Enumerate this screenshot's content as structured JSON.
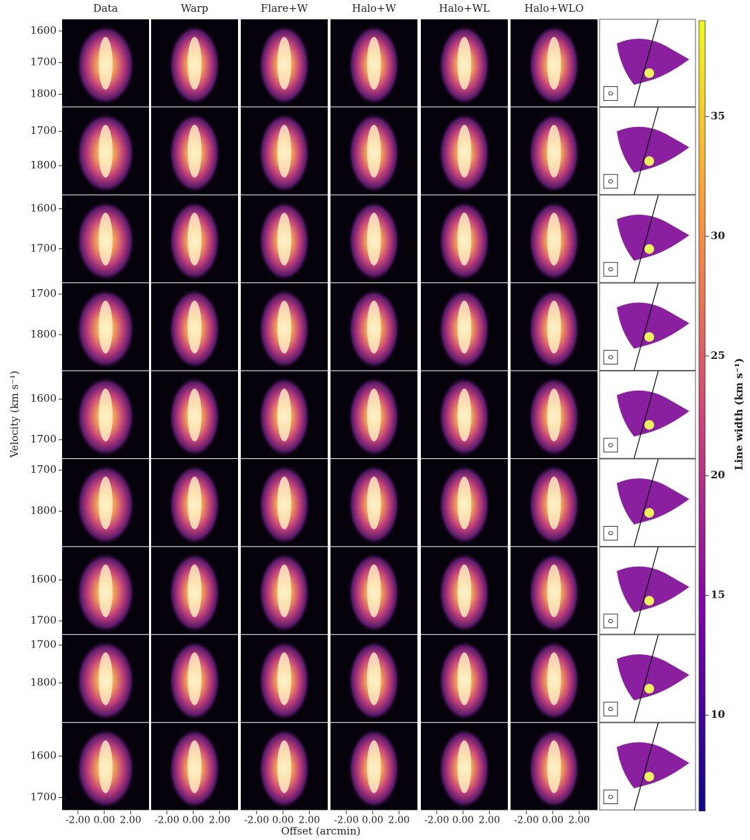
{
  "column_titles": [
    "Data",
    "Warp",
    "Flare+W",
    "Halo+W",
    "Halo+WL",
    "Halo+WLO"
  ],
  "ylabel": "Velocity (km s⁻¹)",
  "xlabel": "Offset (arcmin)",
  "xlim": [
    -3.2,
    3.4
  ],
  "xticks": [
    {
      "value": -2,
      "label": "-2.00"
    },
    {
      "value": 0,
      "label": "0.00"
    },
    {
      "value": 2,
      "label": "2.00"
    }
  ],
  "rows": [
    {
      "ylim": [
        1563,
        1839
      ],
      "yticks": [
        1600,
        1700,
        1800
      ]
    },
    {
      "ylim": [
        1630,
        1884
      ],
      "yticks": [
        1700,
        1800
      ]
    },
    {
      "ylim": [
        1566,
        1784
      ],
      "yticks": [
        1600,
        1700
      ]
    },
    {
      "ylim": [
        1673,
        1888
      ],
      "yticks": [
        1700,
        1800
      ]
    },
    {
      "ylim": [
        1531,
        1746
      ],
      "yticks": [
        1600,
        1700
      ]
    },
    {
      "ylim": [
        1673,
        1885
      ],
      "yticks": [
        1700,
        1800
      ]
    },
    {
      "ylim": [
        1520,
        1732
      ],
      "yticks": [
        1600,
        1700
      ]
    },
    {
      "ylim": [
        1673,
        1904
      ],
      "yticks": [
        1700,
        1800
      ]
    },
    {
      "ylim": [
        1520,
        1730
      ],
      "yticks": [
        1600,
        1700
      ]
    }
  ],
  "colorbar": {
    "label": "Line width (km s⁻¹)",
    "lim": [
      6,
      39
    ],
    "ticks": [
      10,
      15,
      20,
      25,
      30,
      35
    ]
  }
}
